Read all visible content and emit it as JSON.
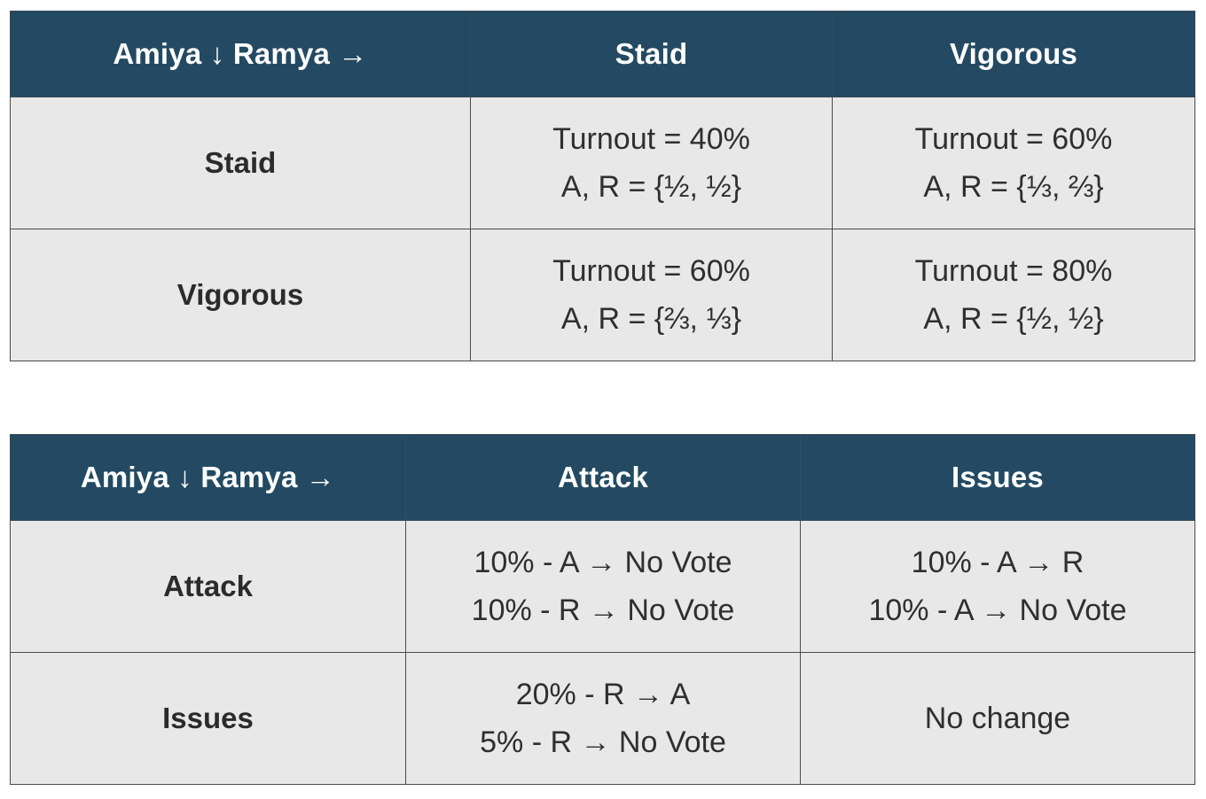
{
  "table1": {
    "corner": "Amiya ↓ Ramya →",
    "columns": [
      "Staid",
      "Vigorous"
    ],
    "rows": [
      {
        "label": "Staid",
        "cells": [
          [
            "Turnout = 40%",
            "A, R = {½, ½}"
          ],
          [
            "Turnout = 60%",
            "A, R = {⅓, ⅔}"
          ]
        ]
      },
      {
        "label": "Vigorous",
        "cells": [
          [
            "Turnout = 60%",
            "A, R = {⅔, ⅓}"
          ],
          [
            "Turnout = 80%",
            "A, R = {½, ½}"
          ]
        ]
      }
    ]
  },
  "table2": {
    "corner": "Amiya ↓ Ramya →",
    "columns": [
      "Attack",
      "Issues"
    ],
    "rows": [
      {
        "label": "Attack",
        "cells": [
          [
            "10% - A → No Vote",
            "10% - R → No Vote"
          ],
          [
            "10% - A → R",
            "10% - A → No Vote"
          ]
        ]
      },
      {
        "label": "Issues",
        "cells": [
          [
            "20% - R → A",
            "5% - R → No Vote"
          ],
          [
            "No change"
          ]
        ]
      }
    ]
  }
}
